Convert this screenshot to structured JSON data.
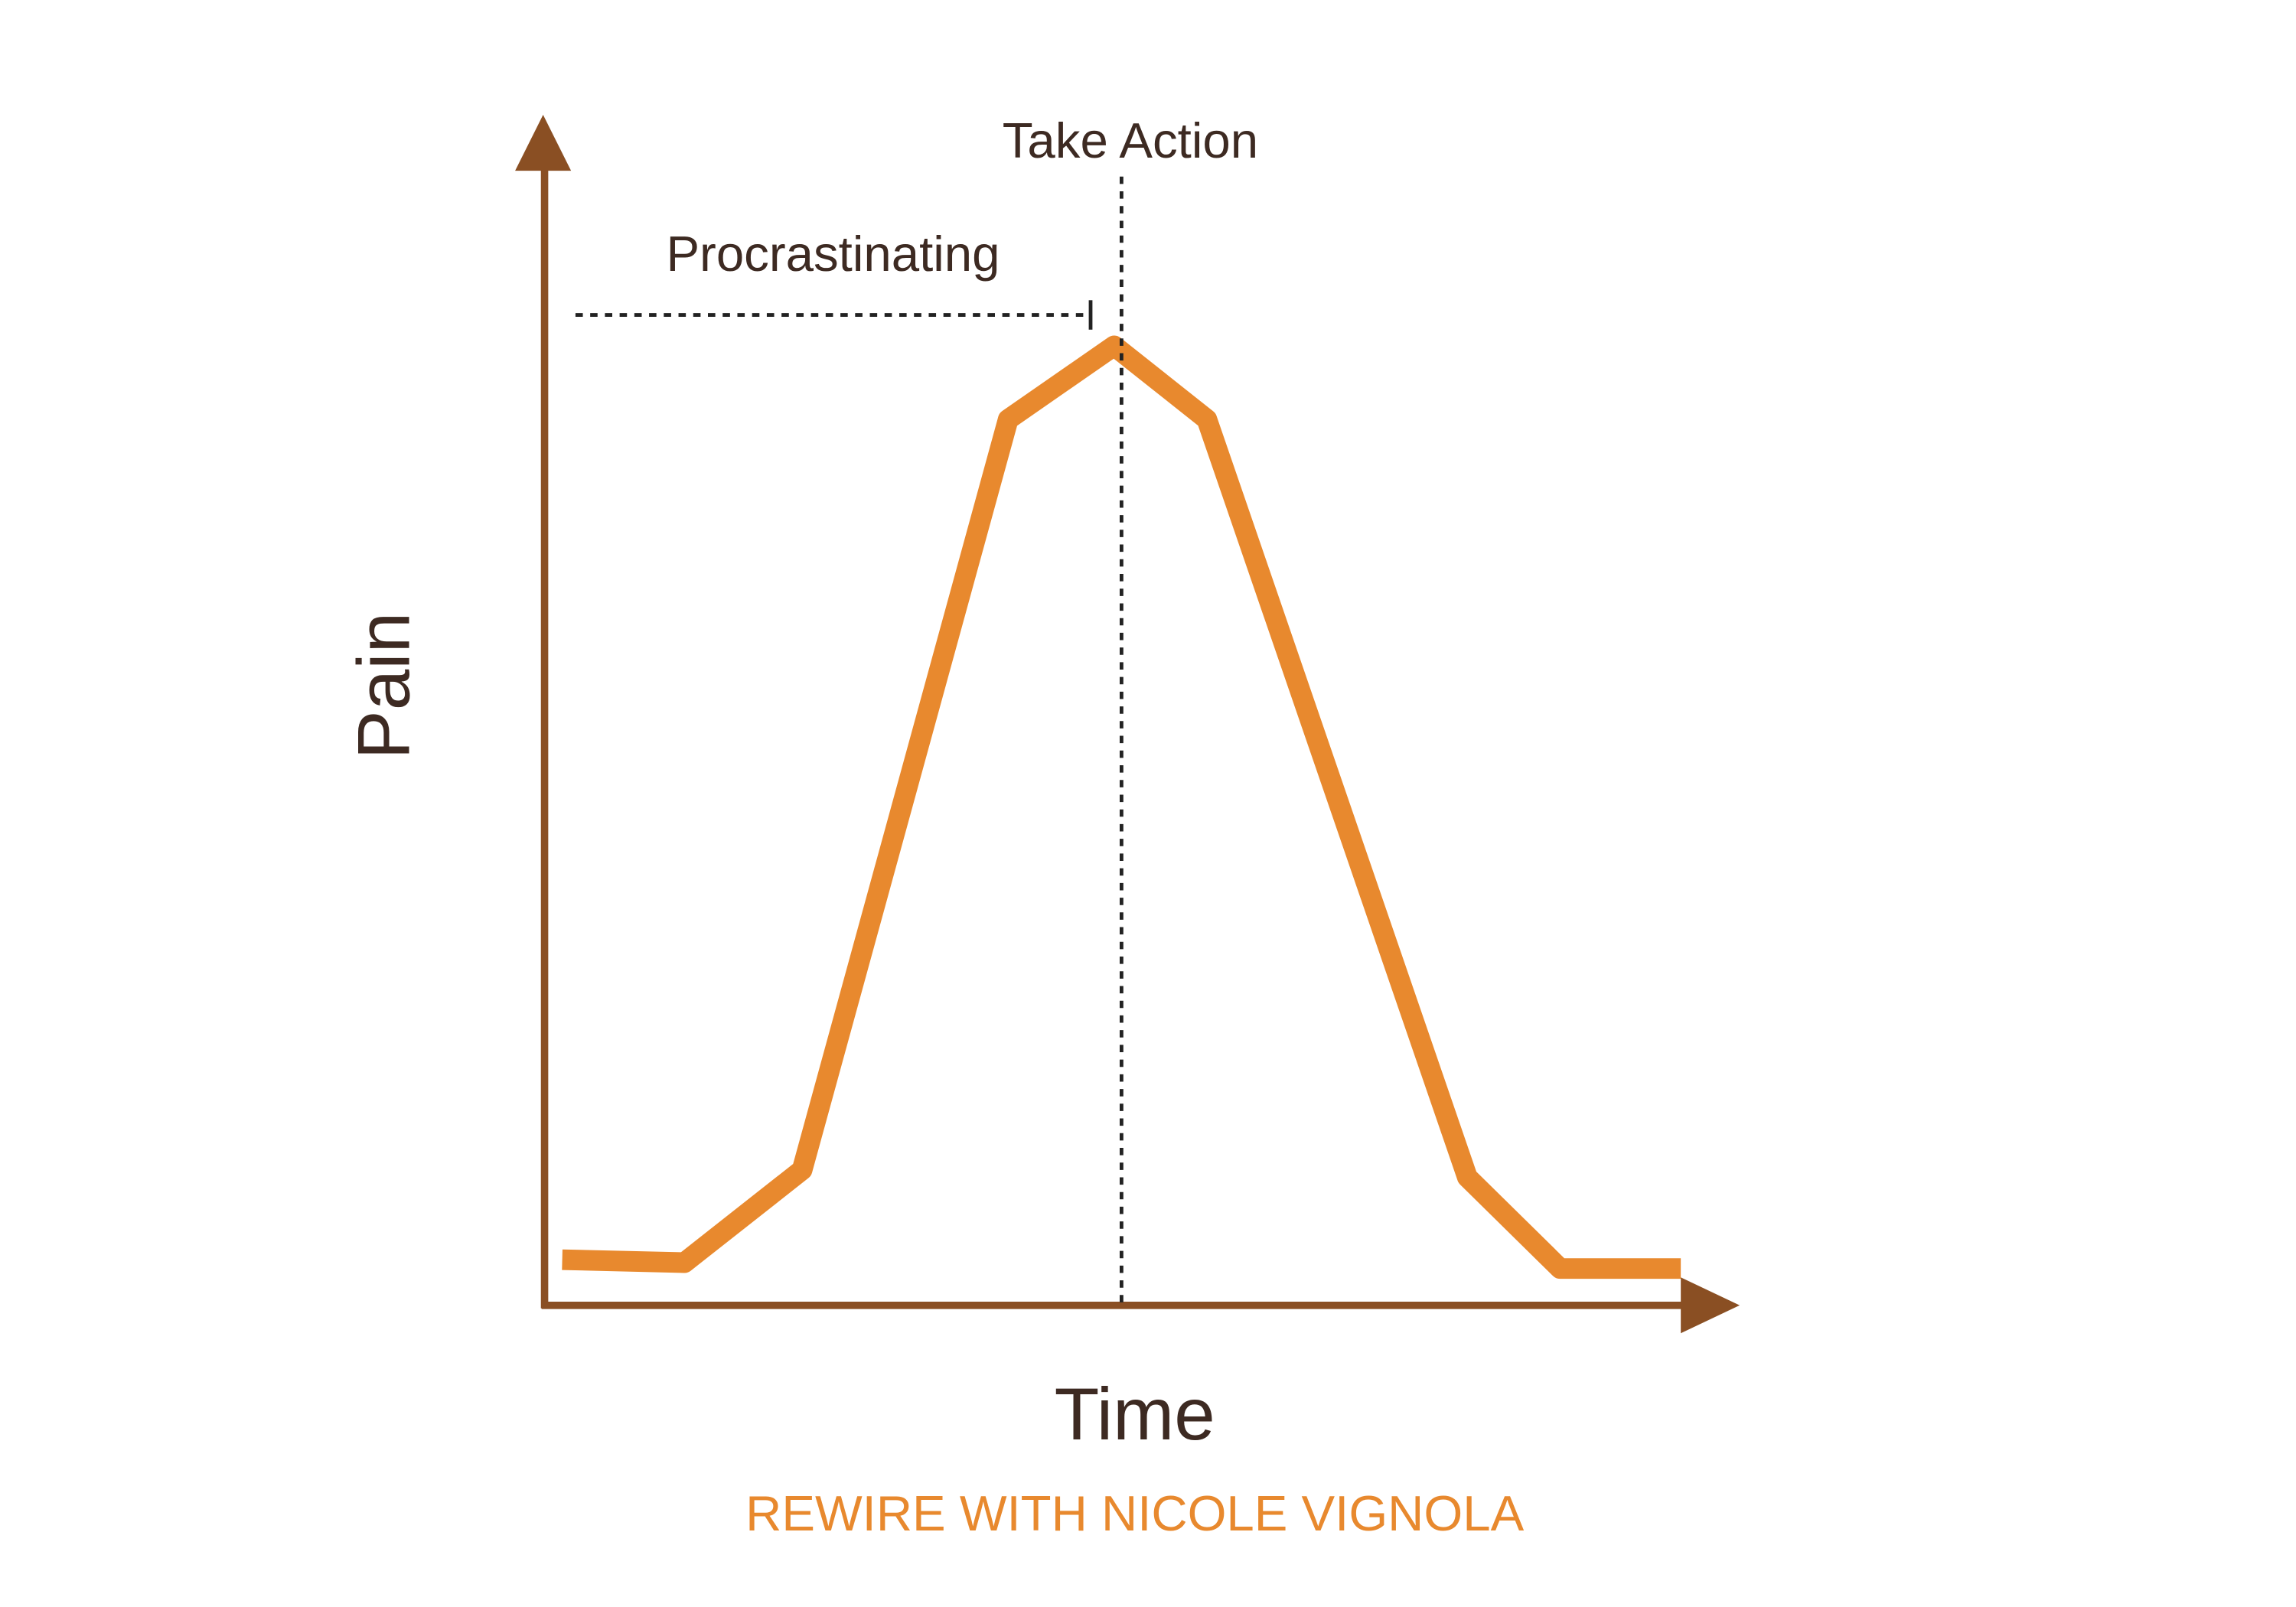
{
  "labels": {
    "action": "Take Action",
    "phase": "Procrastinating",
    "y_axis": "Pain",
    "x_axis": "Time"
  },
  "footer": "REWIRE WITH NICOLE VIGNOLA"
}
